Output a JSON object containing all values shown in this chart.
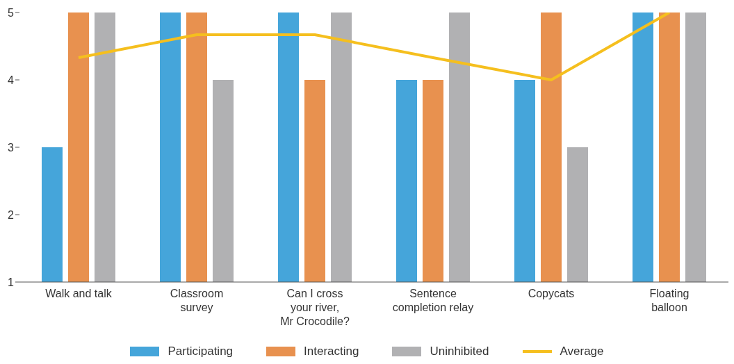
{
  "chart_data": {
    "type": "bar",
    "categories": [
      "Walk and talk",
      "Classroom\nsurvey",
      "Can I cross\nyour river,\nMr Crocodile?",
      "Sentence\ncompletion relay",
      "Copycats",
      "Floating\nballoon"
    ],
    "series": [
      {
        "name": "Participating",
        "color": "#45a5da",
        "values": [
          3,
          5,
          5,
          4,
          4,
          5
        ]
      },
      {
        "name": "Interacting",
        "color": "#e8914f",
        "values": [
          5,
          5,
          4,
          4,
          5,
          5
        ]
      },
      {
        "name": "Uninhibited",
        "color": "#b1b1b3",
        "values": [
          5,
          4,
          5,
          5,
          3,
          5
        ]
      },
      {
        "name": "Average",
        "type": "line",
        "color": "#f5bf1e",
        "values": [
          4.33,
          4.67,
          4.67,
          4.33,
          4,
          5
        ]
      }
    ],
    "ylim": [
      1,
      5
    ],
    "yticks": [
      1,
      2,
      3,
      4,
      5
    ],
    "grid": false,
    "legend": "bottom",
    "marker": "none",
    "line_style": "solid"
  }
}
